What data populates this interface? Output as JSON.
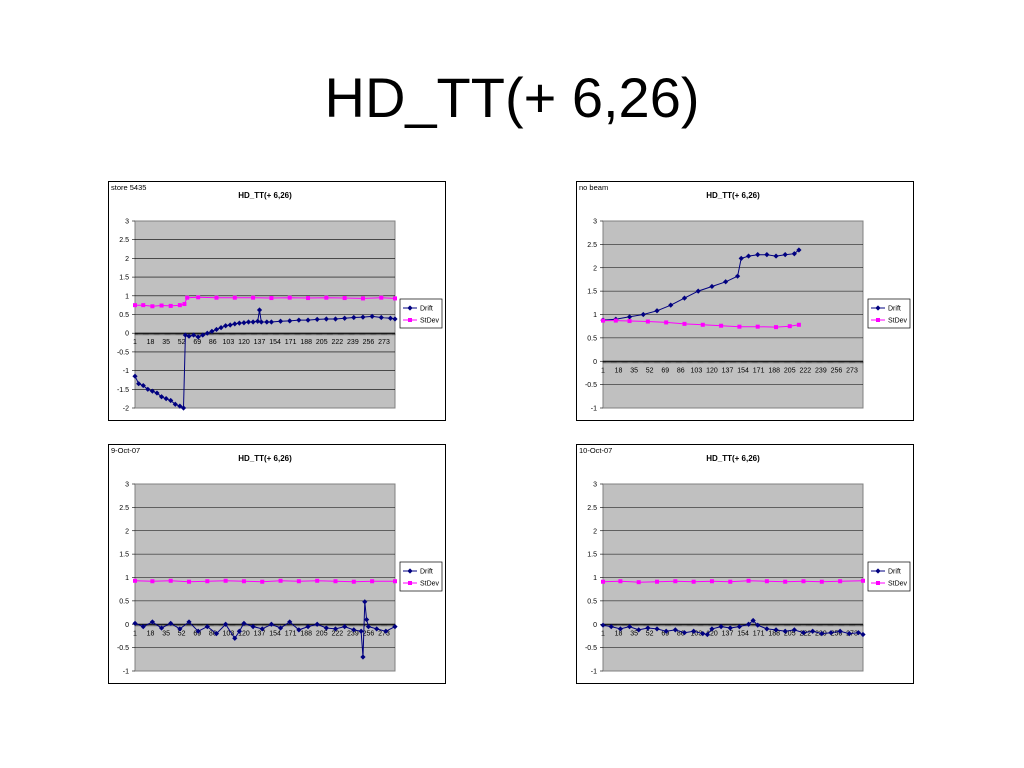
{
  "slide": {
    "title": "HD_TT(+ 6,26)"
  },
  "colors": {
    "drift": "#000080",
    "stdev": "#ff00ff",
    "plot_bg": "#c0c0c0",
    "grid": "#000000"
  },
  "chart_data": [
    {
      "type": "line",
      "note": "store 5435",
      "title": "HD_TT(+ 6,26)",
      "xlabel": "",
      "ylabel": "",
      "ylim": [
        -2,
        3
      ],
      "yticks": [
        "3",
        "2.5",
        "2",
        "1.5",
        "1",
        "0.5",
        "0",
        "-0.5",
        "-1",
        "-1.5",
        "-2"
      ],
      "xticks": [
        "1",
        "18",
        "35",
        "52",
        "69",
        "86",
        "103",
        "120",
        "137",
        "154",
        "171",
        "188",
        "205",
        "222",
        "239",
        "256",
        "273"
      ],
      "xmax": 285,
      "legend": "right",
      "series": [
        {
          "name": "Drift",
          "color": "#000080",
          "marker": "diamond",
          "points": [
            [
              1,
              -1.15
            ],
            [
              5,
              -1.35
            ],
            [
              10,
              -1.4
            ],
            [
              15,
              -1.5
            ],
            [
              20,
              -1.55
            ],
            [
              25,
              -1.6
            ],
            [
              30,
              -1.7
            ],
            [
              35,
              -1.75
            ],
            [
              40,
              -1.8
            ],
            [
              45,
              -1.9
            ],
            [
              50,
              -1.95
            ],
            [
              54,
              -2.0
            ],
            [
              56,
              -0.05
            ],
            [
              60,
              -0.08
            ],
            [
              65,
              -0.05
            ],
            [
              70,
              -0.1
            ],
            [
              75,
              -0.05
            ],
            [
              80,
              0.0
            ],
            [
              85,
              0.05
            ],
            [
              90,
              0.1
            ],
            [
              95,
              0.15
            ],
            [
              100,
              0.2
            ],
            [
              105,
              0.22
            ],
            [
              110,
              0.25
            ],
            [
              115,
              0.27
            ],
            [
              120,
              0.28
            ],
            [
              125,
              0.3
            ],
            [
              130,
              0.3
            ],
            [
              135,
              0.32
            ],
            [
              137,
              0.62
            ],
            [
              139,
              0.3
            ],
            [
              145,
              0.3
            ],
            [
              150,
              0.3
            ],
            [
              160,
              0.32
            ],
            [
              170,
              0.33
            ],
            [
              180,
              0.35
            ],
            [
              190,
              0.35
            ],
            [
              200,
              0.37
            ],
            [
              210,
              0.38
            ],
            [
              220,
              0.38
            ],
            [
              230,
              0.4
            ],
            [
              240,
              0.42
            ],
            [
              250,
              0.43
            ],
            [
              260,
              0.45
            ],
            [
              270,
              0.42
            ],
            [
              280,
              0.4
            ],
            [
              285,
              0.38
            ]
          ]
        },
        {
          "name": "StDev",
          "color": "#ff00ff",
          "marker": "square",
          "points": [
            [
              1,
              0.75
            ],
            [
              10,
              0.75
            ],
            [
              20,
              0.72
            ],
            [
              30,
              0.74
            ],
            [
              40,
              0.73
            ],
            [
              50,
              0.75
            ],
            [
              55,
              0.78
            ],
            [
              58,
              0.95
            ],
            [
              70,
              0.96
            ],
            [
              90,
              0.95
            ],
            [
              110,
              0.95
            ],
            [
              130,
              0.95
            ],
            [
              150,
              0.94
            ],
            [
              170,
              0.95
            ],
            [
              190,
              0.94
            ],
            [
              210,
              0.95
            ],
            [
              230,
              0.94
            ],
            [
              250,
              0.93
            ],
            [
              270,
              0.95
            ],
            [
              285,
              0.93
            ]
          ]
        }
      ]
    },
    {
      "type": "line",
      "note": "no beam",
      "title": "HD_TT(+ 6,26)",
      "xlabel": "",
      "ylabel": "",
      "ylim": [
        -1,
        3
      ],
      "yticks": [
        "3",
        "2.5",
        "2",
        "1.5",
        "1",
        "0.5",
        "0",
        "-0.5",
        "-1"
      ],
      "xticks": [
        "1",
        "18",
        "35",
        "52",
        "69",
        "86",
        "103",
        "120",
        "137",
        "154",
        "171",
        "188",
        "205",
        "222",
        "239",
        "256",
        "273"
      ],
      "xmax": 285,
      "legend": "right",
      "series": [
        {
          "name": "Drift",
          "color": "#000080",
          "marker": "diamond",
          "points": [
            [
              1,
              0.88
            ],
            [
              15,
              0.9
            ],
            [
              30,
              0.95
            ],
            [
              45,
              1.0
            ],
            [
              60,
              1.08
            ],
            [
              75,
              1.2
            ],
            [
              90,
              1.35
            ],
            [
              105,
              1.5
            ],
            [
              120,
              1.6
            ],
            [
              135,
              1.7
            ],
            [
              148,
              1.82
            ],
            [
              152,
              2.2
            ],
            [
              160,
              2.25
            ],
            [
              170,
              2.28
            ],
            [
              180,
              2.28
            ],
            [
              190,
              2.25
            ],
            [
              200,
              2.28
            ],
            [
              210,
              2.3
            ],
            [
              215,
              2.38
            ]
          ]
        },
        {
          "name": "StDev",
          "color": "#ff00ff",
          "marker": "square",
          "points": [
            [
              1,
              0.87
            ],
            [
              15,
              0.87
            ],
            [
              30,
              0.86
            ],
            [
              50,
              0.85
            ],
            [
              70,
              0.83
            ],
            [
              90,
              0.8
            ],
            [
              110,
              0.78
            ],
            [
              130,
              0.76
            ],
            [
              150,
              0.74
            ],
            [
              170,
              0.74
            ],
            [
              190,
              0.73
            ],
            [
              205,
              0.75
            ],
            [
              215,
              0.78
            ]
          ]
        }
      ]
    },
    {
      "type": "line",
      "note": "9-Oct-07",
      "title": "HD_TT(+ 6,26)",
      "xlabel": "",
      "ylabel": "",
      "ylim": [
        -1,
        3
      ],
      "yticks": [
        "3",
        "2.5",
        "2",
        "1.5",
        "1",
        "0.5",
        "0",
        "-0.5",
        "-1"
      ],
      "xticks": [
        "1",
        "18",
        "35",
        "52",
        "69",
        "86",
        "103",
        "120",
        "137",
        "154",
        "171",
        "188",
        "205",
        "222",
        "239",
        "256",
        "273"
      ],
      "xmax": 285,
      "legend": "right",
      "series": [
        {
          "name": "Drift",
          "color": "#000080",
          "marker": "diamond",
          "points": [
            [
              1,
              0.02
            ],
            [
              10,
              -0.05
            ],
            [
              20,
              0.05
            ],
            [
              30,
              -0.08
            ],
            [
              40,
              0.02
            ],
            [
              50,
              -0.1
            ],
            [
              60,
              0.05
            ],
            [
              70,
              -0.15
            ],
            [
              80,
              -0.05
            ],
            [
              90,
              -0.2
            ],
            [
              100,
              0.0
            ],
            [
              110,
              -0.3
            ],
            [
              115,
              -0.15
            ],
            [
              120,
              0.02
            ],
            [
              130,
              -0.05
            ],
            [
              140,
              -0.1
            ],
            [
              150,
              0.0
            ],
            [
              160,
              -0.08
            ],
            [
              170,
              0.05
            ],
            [
              180,
              -0.12
            ],
            [
              190,
              -0.05
            ],
            [
              200,
              0.0
            ],
            [
              210,
              -0.08
            ],
            [
              220,
              -0.1
            ],
            [
              230,
              -0.05
            ],
            [
              240,
              -0.12
            ],
            [
              248,
              -0.15
            ],
            [
              250,
              -0.7
            ],
            [
              252,
              0.48
            ],
            [
              254,
              0.1
            ],
            [
              256,
              -0.05
            ],
            [
              265,
              -0.1
            ],
            [
              275,
              -0.15
            ],
            [
              285,
              -0.05
            ]
          ]
        },
        {
          "name": "StDev",
          "color": "#ff00ff",
          "marker": "square",
          "points": [
            [
              1,
              0.93
            ],
            [
              20,
              0.92
            ],
            [
              40,
              0.93
            ],
            [
              60,
              0.91
            ],
            [
              80,
              0.92
            ],
            [
              100,
              0.93
            ],
            [
              120,
              0.92
            ],
            [
              140,
              0.91
            ],
            [
              160,
              0.93
            ],
            [
              180,
              0.92
            ],
            [
              200,
              0.93
            ],
            [
              220,
              0.92
            ],
            [
              240,
              0.91
            ],
            [
              260,
              0.92
            ],
            [
              285,
              0.92
            ]
          ]
        }
      ]
    },
    {
      "type": "line",
      "note": "10-Oct-07",
      "title": "HD_TT(+ 6,26)",
      "xlabel": "",
      "ylabel": "",
      "ylim": [
        -1,
        3
      ],
      "yticks": [
        "3",
        "2.5",
        "2",
        "1.5",
        "1",
        "0.5",
        "0",
        "-0.5",
        "-1"
      ],
      "xticks": [
        "1",
        "18",
        "35",
        "52",
        "69",
        "86",
        "103",
        "120",
        "137",
        "154",
        "171",
        "188",
        "205",
        "222",
        "239",
        "256",
        "273"
      ],
      "xmax": 285,
      "legend": "right",
      "series": [
        {
          "name": "Drift",
          "color": "#000080",
          "marker": "diamond",
          "points": [
            [
              1,
              -0.02
            ],
            [
              10,
              -0.05
            ],
            [
              20,
              -0.1
            ],
            [
              30,
              -0.05
            ],
            [
              40,
              -0.12
            ],
            [
              50,
              -0.08
            ],
            [
              60,
              -0.1
            ],
            [
              70,
              -0.15
            ],
            [
              80,
              -0.12
            ],
            [
              90,
              -0.18
            ],
            [
              100,
              -0.15
            ],
            [
              110,
              -0.2
            ],
            [
              115,
              -0.22
            ],
            [
              120,
              -0.1
            ],
            [
              130,
              -0.05
            ],
            [
              140,
              -0.08
            ],
            [
              150,
              -0.05
            ],
            [
              160,
              0.0
            ],
            [
              165,
              0.08
            ],
            [
              170,
              -0.02
            ],
            [
              180,
              -0.1
            ],
            [
              190,
              -0.12
            ],
            [
              200,
              -0.15
            ],
            [
              210,
              -0.12
            ],
            [
              220,
              -0.18
            ],
            [
              230,
              -0.15
            ],
            [
              240,
              -0.2
            ],
            [
              250,
              -0.18
            ],
            [
              260,
              -0.15
            ],
            [
              270,
              -0.2
            ],
            [
              280,
              -0.18
            ],
            [
              285,
              -0.22
            ]
          ]
        },
        {
          "name": "StDev",
          "color": "#ff00ff",
          "marker": "square",
          "points": [
            [
              1,
              0.91
            ],
            [
              20,
              0.92
            ],
            [
              40,
              0.9
            ],
            [
              60,
              0.91
            ],
            [
              80,
              0.92
            ],
            [
              100,
              0.91
            ],
            [
              120,
              0.92
            ],
            [
              140,
              0.91
            ],
            [
              160,
              0.93
            ],
            [
              180,
              0.92
            ],
            [
              200,
              0.91
            ],
            [
              220,
              0.92
            ],
            [
              240,
              0.91
            ],
            [
              260,
              0.92
            ],
            [
              285,
              0.93
            ]
          ]
        }
      ]
    }
  ]
}
